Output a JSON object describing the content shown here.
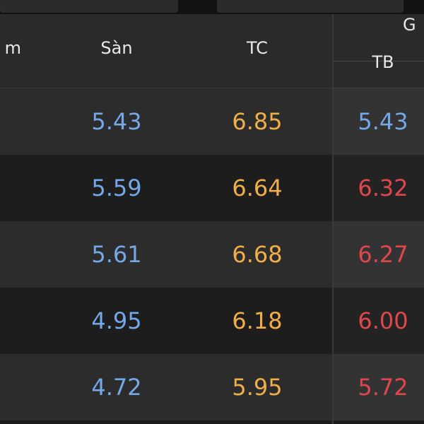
{
  "colors": {
    "floor_blue": "#74a8e8",
    "reference_yellow": "#f0ae49",
    "up_red": "#e0474c"
  },
  "header": {
    "left_partial": "m",
    "floor": "Sàn",
    "reference": "TC",
    "group_partial": "G",
    "average": "TB"
  },
  "rows": [
    {
      "floor": "5.43",
      "reference": "6.85",
      "average": "5.43",
      "average_color": "#74a8e8"
    },
    {
      "floor": "5.59",
      "reference": "6.64",
      "average": "6.32",
      "average_color": "#e0474c"
    },
    {
      "floor": "5.61",
      "reference": "6.68",
      "average": "6.27",
      "average_color": "#e0474c"
    },
    {
      "floor": "4.95",
      "reference": "6.18",
      "average": "6.00",
      "average_color": "#e0474c"
    },
    {
      "floor": "4.72",
      "reference": "5.95",
      "average": "5.72",
      "average_color": "#e0474c"
    }
  ]
}
